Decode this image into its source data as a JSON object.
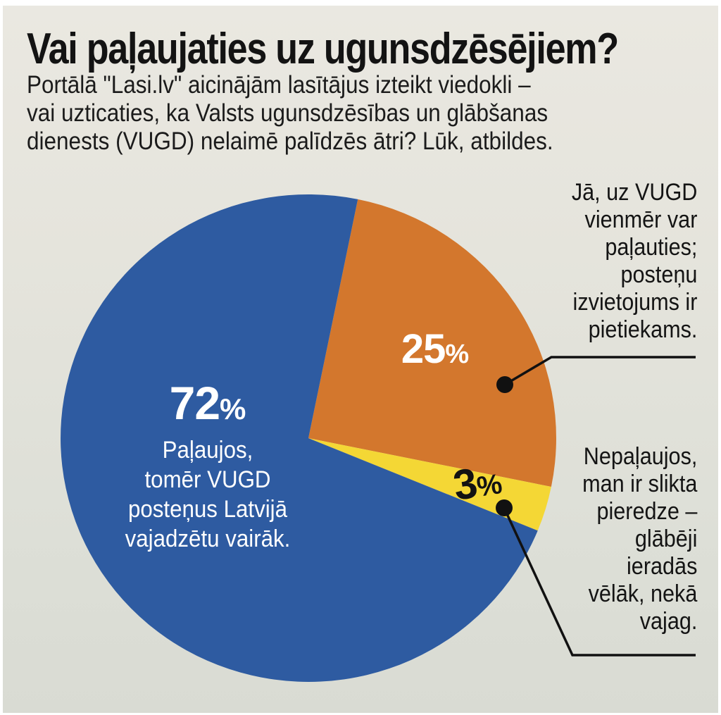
{
  "header": {
    "title": "Vai paļaujaties uz ugunsdzēsējiem?",
    "subtitle_lines": [
      "Portālā \"Lasi.lv\" aicinājām lasītājus izteikt viedokli –",
      "vai uzticaties, ka Valsts ugunsdzēsības un glābšanas",
      "dienests (VUGD) nelaimē palīdzēs ātri? Lūk, atbildes."
    ]
  },
  "colors": {
    "background_top": "#eae8e1",
    "background_bottom": "#d9dbd3",
    "blue": "#2e5ba1",
    "orange": "#d3772d",
    "yellow": "#f4d735",
    "text_dark": "#141414",
    "text_light": "#ffffff",
    "callout": "#111111"
  },
  "chart_data": {
    "type": "pie",
    "title": "Vai paļaujaties uz ugunsdzēsējiem?",
    "unit": "%",
    "slices": [
      {
        "id": "trust-but-more-stations",
        "value_pct": 72,
        "color": "#2e5ba1",
        "label": "Paļaujos, tomēr VUGD posteņus Latvijā vajadzētu vairāk."
      },
      {
        "id": "full-trust",
        "value_pct": 25,
        "color": "#d3772d",
        "label": "Jā, uz VUGD vienmēr var paļauties; posteņu izvietojums ir pietiekams."
      },
      {
        "id": "no-trust",
        "value_pct": 3,
        "color": "#f4d735",
        "label": "Nepaļaujos, man ir slikta pieredze – glābēji ieradās vēlāk, nekā vajag."
      }
    ],
    "start_angle_deg": 11.5,
    "clockwise_order": [
      1,
      2,
      0
    ],
    "legend_position": "labels-on-chart"
  },
  "labels": {
    "blue_pct_num": "72",
    "blue_pct_sign": "%",
    "blue_lines": [
      "Paļaujos,",
      "tomēr VUGD",
      "posteņus Latvijā",
      "vajadzētu vairāk."
    ],
    "orange_pct_num": "25",
    "orange_pct_sign": "%",
    "yellow_pct_num": "3",
    "yellow_pct_sign": "%"
  },
  "annotations": {
    "right_top_lines": [
      "Jā, uz VUGD",
      "vienmēr var",
      "paļauties;",
      "posteņu",
      "izvietojums ir",
      "pietiekams."
    ],
    "right_bottom_lines": [
      "Nepaļaujos,",
      "man ir slikta",
      "pieredze –",
      "glābēji",
      "ieradās",
      "vēlāk, nekā",
      "vajag."
    ]
  }
}
